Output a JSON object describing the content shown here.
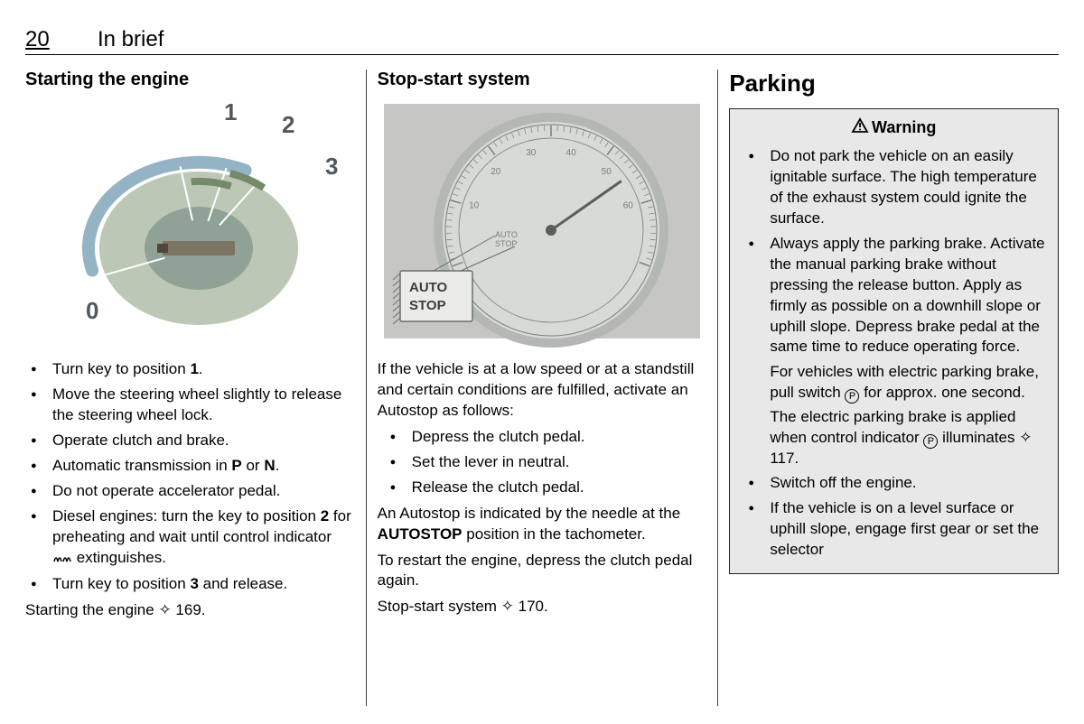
{
  "header": {
    "page_number": "20",
    "title": "In brief"
  },
  "col1": {
    "heading": "Starting the engine",
    "ignition": {
      "labels": [
        "0",
        "1",
        "2",
        "3"
      ],
      "dial_fill": "#b9c4b2",
      "dial_inner": "#8fa295",
      "arc_color": "#94b4c6",
      "arrow_color": "#758a68",
      "key_color": "#7b7463",
      "label_color": "#52595e",
      "label_font_size": 26
    },
    "bullets": [
      "Turn key to position <b>1</b>.",
      "Move the steering wheel slightly to release the steering wheel lock.",
      "Operate clutch and brake.",
      "Automatic transmission in <b>P</b> or <b>N</b>.",
      "Do not operate accelerator pedal.",
      "Diesel engines: turn the key to position <b>2</b> for preheating and wait until control indicator <span class='preheat-icon'><svg width='22' height='14'><path d='M2 11 Q4 3 6 11 Q8 3 10 11 M12 11 Q14 3 16 11 Q18 3 20 11' stroke='#000' stroke-width='1.6' fill='none'/></svg></span> extinguishes.",
      "Turn key to position <b>3</b> and release."
    ],
    "footer": "Starting the engine <span class='ref-arrow'>✧</span> 169."
  },
  "col2": {
    "heading": "Stop-start system",
    "gauge": {
      "scale_labels": [
        "10",
        "20",
        "30",
        "40",
        "50",
        "60"
      ],
      "callout": "AUTO\nSTOP",
      "face_color": "#d7dad7",
      "rim_color": "#b4b8b4",
      "outer_bg": "#c6c7c4",
      "needle_color": "#5a5f5a",
      "tick_color": "#7a7f7a",
      "callout_bg": "#ebece9",
      "callout_border": "#6a6f6a",
      "label_font_size": 10,
      "auto_stop_label": "AUTO\nSTOP"
    },
    "intro": "If the vehicle is at a low speed or at a standstill and certain conditions are fulfilled, activate an Autostop as follows:",
    "bullets": [
      "Depress the clutch pedal.",
      "Set the lever in neutral.",
      "Release the clutch pedal."
    ],
    "para1": "An Autostop is indicated by the needle at the <b>AUTOSTOP</b> position in the tachometer.",
    "para2": "To restart the engine, depress the clutch pedal again.",
    "footer": "Stop-start system <span class='ref-arrow'>✧</span> 170."
  },
  "col3": {
    "heading": "Parking",
    "warning_title": "Warning",
    "warning_box_bg": "#e8e8e8",
    "items": [
      {
        "type": "li",
        "html": "Do not park the vehicle on an easily ignitable surface. The high temperature of the exhaust system could ignite the surface."
      },
      {
        "type": "li",
        "html": "Always apply the parking brake. Activate the manual parking brake without pressing the release button. Apply as firmly as possible on a downhill slope or uphill slope. Depress brake pedal at the same time to reduce operating force."
      },
      {
        "type": "p",
        "html": "For vehicles with electric parking brake, pull switch <span class='p-icon'>P</span> for approx. one second."
      },
      {
        "type": "p",
        "html": "The electric parking brake is applied when control indicator <span class='p-icon'>P</span> illuminates <span class='ref-arrow'>✧</span> 117."
      },
      {
        "type": "li",
        "html": "Switch off the engine."
      },
      {
        "type": "li",
        "html": "If the vehicle is on a level surface or uphill slope, engage first gear or set the selector"
      }
    ]
  }
}
